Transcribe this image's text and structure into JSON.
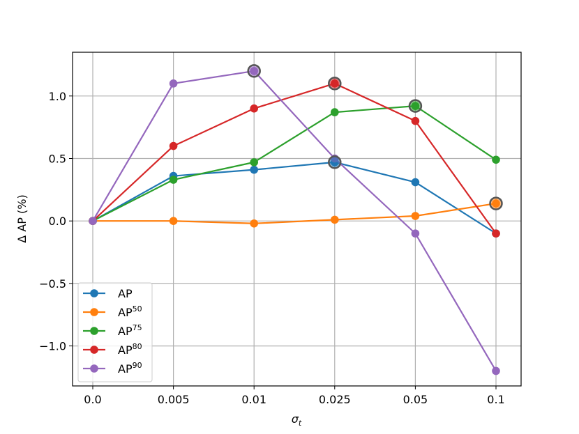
{
  "chart_data": {
    "type": "line",
    "title": "",
    "xlabel_symbol": "σ",
    "xlabel_subscript": "t",
    "ylabel": "Δ AP (%)",
    "categories": [
      "0.0",
      "0.005",
      "0.01",
      "0.025",
      "0.05",
      "0.1"
    ],
    "yticks": [
      -1.0,
      -0.5,
      0.0,
      0.5,
      1.0
    ],
    "ytick_labels": [
      "−1.0",
      "−0.5",
      "0.0",
      "0.5",
      "1.0"
    ],
    "ylim": [
      -1.32,
      1.35
    ],
    "grid": true,
    "legend_position": "lower-left",
    "series": [
      {
        "name": "AP",
        "base": "AP",
        "sup": "",
        "color": "#1f77b4",
        "values": [
          0.0,
          0.36,
          0.41,
          0.47,
          0.31,
          -0.1
        ],
        "best_index": 3
      },
      {
        "name": "AP50",
        "base": "AP",
        "sup": "50",
        "color": "#ff7f0e",
        "values": [
          0.0,
          0.0,
          -0.02,
          0.01,
          0.04,
          0.14
        ],
        "best_index": 5
      },
      {
        "name": "AP75",
        "base": "AP",
        "sup": "75",
        "color": "#2ca02c",
        "values": [
          0.0,
          0.33,
          0.47,
          0.87,
          0.92,
          0.49
        ],
        "best_index": 4
      },
      {
        "name": "AP80",
        "base": "AP",
        "sup": "80",
        "color": "#d62728",
        "values": [
          0.0,
          0.6,
          0.9,
          1.1,
          0.8,
          -0.1
        ],
        "best_index": 3
      },
      {
        "name": "AP90",
        "base": "AP",
        "sup": "90",
        "color": "#9467bd",
        "values": [
          0.0,
          1.1,
          1.2,
          0.5,
          -0.1,
          -1.2
        ],
        "best_index": 2
      }
    ]
  }
}
